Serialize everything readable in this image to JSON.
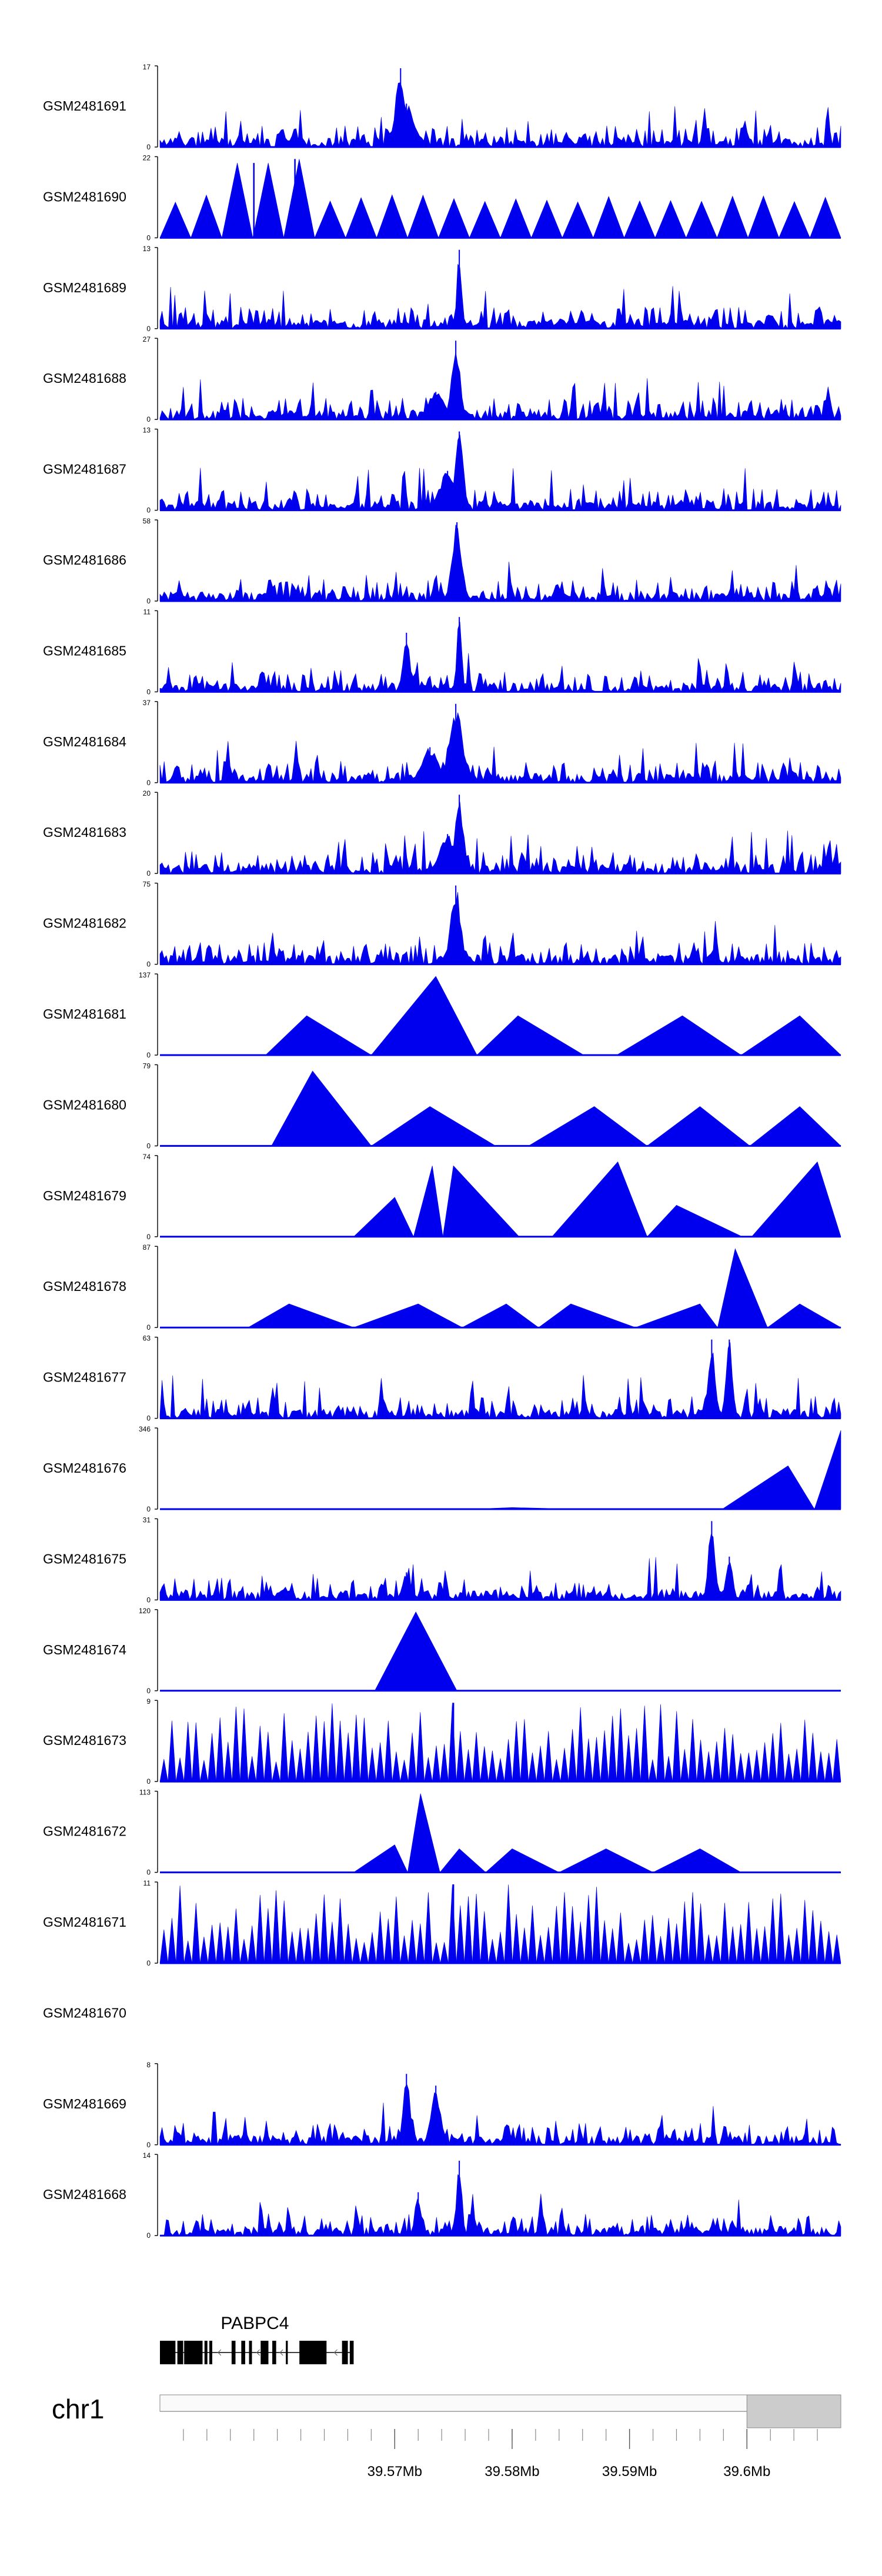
{
  "chart_data": {
    "type": "area",
    "title": "",
    "xlabel": "",
    "ylabel": "",
    "xlim": [
      39.55,
      39.608
    ],
    "color": "#0000ee",
    "peak_region": [
      39.5735,
      39.5765
    ],
    "tracks": [
      {
        "name": "GSM2481691",
        "ymax": 17,
        "ymin": 0,
        "pattern": "noise",
        "peaks": [
          [
            39.5705,
            1.0,
            0.0006
          ],
          [
            39.571,
            0.55,
            0.001
          ]
        ]
      },
      {
        "name": "GSM2481690",
        "ymax": 22,
        "ymin": 0,
        "pattern": "sparse",
        "peaks": [
          [
            39.558,
            0.95
          ],
          [
            39.5615,
            1.0
          ]
        ]
      },
      {
        "name": "GSM2481689",
        "ymax": 13,
        "ymin": 0,
        "pattern": "noise",
        "peaks": [
          [
            39.5755,
            1.0,
            0.0003
          ]
        ]
      },
      {
        "name": "GSM2481688",
        "ymax": 27,
        "ymin": 0,
        "pattern": "noise",
        "peaks": [
          [
            39.5752,
            1.0,
            0.0005
          ],
          [
            39.5735,
            0.35,
            0.001
          ]
        ]
      },
      {
        "name": "GSM2481687",
        "ymax": 13,
        "ymin": 0,
        "pattern": "noise",
        "peaks": [
          [
            39.5755,
            1.0,
            0.0005
          ],
          [
            39.5745,
            0.5,
            0.001
          ]
        ]
      },
      {
        "name": "GSM2481686",
        "ymax": 58,
        "ymin": 0,
        "pattern": "noise",
        "peaks": [
          [
            39.5753,
            1.0,
            0.0006
          ]
        ]
      },
      {
        "name": "GSM2481685",
        "ymax": 11,
        "ymin": 0,
        "pattern": "noise",
        "peaks": [
          [
            39.5755,
            0.95,
            0.0003
          ],
          [
            39.571,
            0.75,
            0.0004
          ]
        ]
      },
      {
        "name": "GSM2481684",
        "ymax": 37,
        "ymin": 0,
        "pattern": "noise",
        "peaks": [
          [
            39.5752,
            1.0,
            0.0008
          ],
          [
            39.573,
            0.45,
            0.001
          ]
        ]
      },
      {
        "name": "GSM2481683",
        "ymax": 20,
        "ymin": 0,
        "pattern": "noise",
        "peaks": [
          [
            39.5755,
            1.0,
            0.0005
          ],
          [
            39.5745,
            0.5,
            0.001
          ]
        ]
      },
      {
        "name": "GSM2481682",
        "ymax": 75,
        "ymin": 0,
        "pattern": "noise",
        "peaks": [
          [
            39.5752,
            1.0,
            0.0006
          ]
        ]
      },
      {
        "name": "GSM2481681",
        "ymax": 137,
        "ymin": 0,
        "pattern": "triangles",
        "peaks": [
          [
            39.5625,
            0.5
          ],
          [
            39.5735,
            1.0
          ],
          [
            39.5805,
            0.5
          ],
          [
            39.5945,
            0.5
          ],
          [
            39.6045,
            0.5
          ]
        ]
      },
      {
        "name": "GSM2481680",
        "ymax": 79,
        "ymin": 0,
        "pattern": "triangles",
        "peaks": [
          [
            39.563,
            0.95
          ],
          [
            39.573,
            0.5
          ],
          [
            39.587,
            0.5
          ],
          [
            39.596,
            0.5
          ],
          [
            39.6045,
            0.5
          ]
        ]
      },
      {
        "name": "GSM2481679",
        "ymax": 74,
        "ymin": 0,
        "pattern": "triangles",
        "peaks": [
          [
            39.57,
            0.5
          ],
          [
            39.5732,
            0.9
          ],
          [
            39.575,
            0.9
          ],
          [
            39.589,
            0.95
          ],
          [
            39.594,
            0.4
          ],
          [
            39.606,
            0.95
          ]
        ]
      },
      {
        "name": "GSM2481678",
        "ymax": 87,
        "ymin": 0,
        "pattern": "triangles",
        "peaks": [
          [
            39.561,
            0.3
          ],
          [
            39.572,
            0.3
          ],
          [
            39.5795,
            0.3
          ],
          [
            39.585,
            0.3
          ],
          [
            39.596,
            0.3
          ],
          [
            39.599,
            1.0
          ],
          [
            39.6045,
            0.3
          ]
        ]
      },
      {
        "name": "GSM2481677",
        "ymax": 63,
        "ymin": 0,
        "pattern": "noise",
        "peaks": [
          [
            39.597,
            1.0,
            0.0004
          ],
          [
            39.5985,
            1.0,
            0.0004
          ]
        ]
      },
      {
        "name": "GSM2481676",
        "ymax": 346,
        "ymin": 0,
        "pattern": "triangles",
        "peaks": [
          [
            39.58,
            0.02
          ],
          [
            39.6035,
            0.55
          ],
          [
            39.608,
            1.0
          ]
        ]
      },
      {
        "name": "GSM2481675",
        "ymax": 31,
        "ymin": 0,
        "pattern": "noise",
        "peaks": [
          [
            39.597,
            1.0,
            0.0004
          ],
          [
            39.5985,
            0.55,
            0.0004
          ],
          [
            39.571,
            0.35,
            0.0005
          ]
        ]
      },
      {
        "name": "GSM2481674",
        "ymax": 120,
        "ymin": 0,
        "pattern": "triangles",
        "peaks": [
          [
            39.5718,
            1.0
          ]
        ]
      },
      {
        "name": "GSM2481673",
        "ymax": 9,
        "ymin": 0,
        "pattern": "sparse-dense",
        "peaks": [
          [
            39.575,
            1.0
          ]
        ]
      },
      {
        "name": "GSM2481672",
        "ymax": 113,
        "ymin": 0,
        "pattern": "triangles",
        "peaks": [
          [
            39.57,
            0.35
          ],
          [
            39.5722,
            1.0
          ],
          [
            39.5755,
            0.3
          ],
          [
            39.58,
            0.3
          ],
          [
            39.588,
            0.3
          ],
          [
            39.596,
            0.3
          ]
        ]
      },
      {
        "name": "GSM2481671",
        "ymax": 11,
        "ymin": 0,
        "pattern": "sparse-dense",
        "peaks": [
          [
            39.575,
            1.0
          ]
        ]
      },
      {
        "name": "GSM2481670",
        "ymax": null,
        "ymin": null,
        "pattern": "empty",
        "peaks": []
      },
      {
        "name": "GSM2481669",
        "ymax": 8,
        "ymin": 0,
        "pattern": "noise",
        "peaks": [
          [
            39.571,
            0.9,
            0.0004
          ],
          [
            39.5735,
            0.75,
            0.0006
          ]
        ]
      },
      {
        "name": "GSM2481668",
        "ymax": 14,
        "ymin": 0,
        "pattern": "noise",
        "peaks": [
          [
            39.5755,
            0.95,
            0.0003
          ],
          [
            39.572,
            0.55,
            0.0004
          ]
        ]
      }
    ],
    "gene": {
      "name": "PABPC4",
      "start": 39.55,
      "end": 39.5665,
      "strand": "-"
    },
    "axis": {
      "chromosome": "chr1",
      "ticks": [
        39.57,
        39.58,
        39.59,
        39.6
      ],
      "tick_labels": [
        "39.57Mb",
        "39.58Mb",
        "39.59Mb",
        "39.6Mb"
      ],
      "minor_tick_step": 0.002,
      "shaded_region": [
        39.6,
        39.608
      ]
    }
  }
}
